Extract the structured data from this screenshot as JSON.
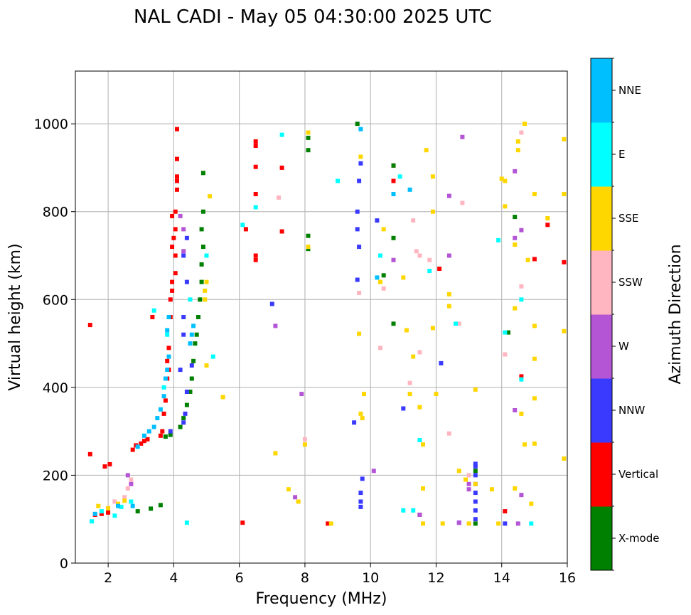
{
  "chart_data": {
    "type": "scatter",
    "title": "NAL CADI - May 05 04:30:00 2025 UTC",
    "xlabel": "Frequency (MHz)",
    "ylabel": "Virtual height (km)",
    "xlim": [
      1,
      16
    ],
    "ylim": [
      0,
      1120
    ],
    "xticks": [
      2,
      4,
      6,
      8,
      10,
      12,
      14,
      16
    ],
    "yticks": [
      0,
      200,
      400,
      600,
      800,
      1000
    ],
    "grid": true,
    "colorbar": {
      "label": "Azimuth Direction",
      "categories": [
        "X-mode",
        "Vertical",
        "NNW",
        "W",
        "SSW",
        "SSE",
        "E",
        "NNE"
      ],
      "colors": [
        "#008000",
        "#ff0000",
        "#3a3aff",
        "#b455d6",
        "#ffb6c1",
        "#ffd700",
        "#00ffff",
        "#00bfff"
      ]
    },
    "series": [
      {
        "name": "Vertical",
        "points": [
          [
            1.45,
            542
          ],
          [
            1.45,
            248
          ],
          [
            1.6,
            110
          ],
          [
            1.8,
            112
          ],
          [
            2.0,
            115
          ],
          [
            1.9,
            220
          ],
          [
            2.05,
            225
          ],
          [
            2.75,
            258
          ],
          [
            2.85,
            268
          ],
          [
            3.0,
            272
          ],
          [
            3.1,
            278
          ],
          [
            3.2,
            282
          ],
          [
            3.35,
            560
          ],
          [
            3.6,
            290
          ],
          [
            3.65,
            300
          ],
          [
            3.7,
            340
          ],
          [
            3.75,
            370
          ],
          [
            3.8,
            420
          ],
          [
            3.85,
            440
          ],
          [
            3.8,
            460
          ],
          [
            3.85,
            490
          ],
          [
            3.9,
            560
          ],
          [
            3.9,
            600
          ],
          [
            3.95,
            620
          ],
          [
            3.95,
            640
          ],
          [
            4.05,
            660
          ],
          [
            4.05,
            700
          ],
          [
            3.95,
            720
          ],
          [
            4.0,
            740
          ],
          [
            4.05,
            760
          ],
          [
            3.95,
            790
          ],
          [
            4.05,
            800
          ],
          [
            4.1,
            850
          ],
          [
            4.1,
            870
          ],
          [
            4.1,
            880
          ],
          [
            4.1,
            920
          ],
          [
            4.1,
            988
          ],
          [
            6.1,
            92
          ],
          [
            6.2,
            760
          ],
          [
            6.5,
            690
          ],
          [
            6.5,
            700
          ],
          [
            6.5,
            840
          ],
          [
            6.5,
            902
          ],
          [
            6.5,
            950
          ],
          [
            6.5,
            960
          ],
          [
            7.3,
            755
          ],
          [
            7.3,
            900
          ],
          [
            8.7,
            90
          ],
          [
            10.7,
            870
          ],
          [
            10.7,
            905
          ],
          [
            11.5,
            110
          ],
          [
            12.1,
            670
          ],
          [
            14.1,
            118
          ],
          [
            14.6,
            425
          ],
          [
            15.0,
            692
          ],
          [
            15.4,
            770
          ],
          [
            15.9,
            685
          ]
        ]
      },
      {
        "name": "X-mode",
        "points": [
          [
            2.9,
            118
          ],
          [
            3.3,
            124
          ],
          [
            3.6,
            132
          ],
          [
            3.75,
            288
          ],
          [
            3.9,
            292
          ],
          [
            4.2,
            310
          ],
          [
            4.3,
            330
          ],
          [
            4.4,
            360
          ],
          [
            4.5,
            390
          ],
          [
            4.55,
            420
          ],
          [
            4.6,
            460
          ],
          [
            4.65,
            500
          ],
          [
            4.7,
            520
          ],
          [
            4.75,
            560
          ],
          [
            4.8,
            600
          ],
          [
            4.85,
            640
          ],
          [
            4.85,
            680
          ],
          [
            4.9,
            720
          ],
          [
            4.85,
            760
          ],
          [
            4.9,
            800
          ],
          [
            4.9,
            888
          ],
          [
            8.1,
            715
          ],
          [
            8.1,
            745
          ],
          [
            8.1,
            940
          ],
          [
            8.1,
            968
          ],
          [
            9.6,
            1000
          ],
          [
            10.4,
            655
          ],
          [
            10.7,
            545
          ],
          [
            10.7,
            740
          ],
          [
            10.7,
            905
          ],
          [
            13.2,
            90
          ],
          [
            13.2,
            210
          ],
          [
            14.2,
            525
          ],
          [
            14.4,
            788
          ]
        ]
      },
      {
        "name": "NNW",
        "points": [
          [
            3.9,
            300
          ],
          [
            4.2,
            440
          ],
          [
            4.3,
            320
          ],
          [
            4.35,
            340
          ],
          [
            4.4,
            390
          ],
          [
            4.55,
            450
          ],
          [
            4.3,
            520
          ],
          [
            4.3,
            560
          ],
          [
            4.4,
            640
          ],
          [
            4.3,
            700
          ],
          [
            4.4,
            740
          ],
          [
            7.0,
            590
          ],
          [
            9.5,
            320
          ],
          [
            9.6,
            645
          ],
          [
            9.65,
            720
          ],
          [
            9.7,
            140
          ],
          [
            9.7,
            128
          ],
          [
            9.7,
            160
          ],
          [
            9.75,
            192
          ],
          [
            9.6,
            760
          ],
          [
            9.6,
            800
          ],
          [
            9.65,
            870
          ],
          [
            9.7,
            910
          ],
          [
            10.2,
            780
          ],
          [
            11.0,
            352
          ],
          [
            12.15,
            455
          ],
          [
            12.7,
            92
          ],
          [
            13.2,
            100
          ],
          [
            13.2,
            120
          ],
          [
            13.2,
            140
          ],
          [
            13.2,
            160
          ],
          [
            13.2,
            180
          ],
          [
            13.2,
            200
          ],
          [
            13.2,
            220
          ],
          [
            13.2,
            226
          ],
          [
            14.1,
            90
          ]
        ]
      },
      {
        "name": "W",
        "points": [
          [
            2.6,
            200
          ],
          [
            2.7,
            180
          ],
          [
            4.2,
            790
          ],
          [
            4.3,
            710
          ],
          [
            4.3,
            760
          ],
          [
            7.1,
            540
          ],
          [
            7.7,
            150
          ],
          [
            7.9,
            385
          ],
          [
            10.1,
            210
          ],
          [
            10.7,
            690
          ],
          [
            11.5,
            110
          ],
          [
            12.4,
            700
          ],
          [
            12.4,
            836
          ],
          [
            12.7,
            92
          ],
          [
            12.8,
            970
          ],
          [
            13.0,
            168
          ],
          [
            13.0,
            180
          ],
          [
            14.4,
            348
          ],
          [
            14.4,
            892
          ],
          [
            14.6,
            758
          ],
          [
            14.6,
            155
          ],
          [
            14.5,
            90
          ],
          [
            14.4,
            740
          ]
        ]
      },
      {
        "name": "SSW",
        "points": [
          [
            2.2,
            140
          ],
          [
            2.5,
            150
          ],
          [
            2.6,
            170
          ],
          [
            2.7,
            190
          ],
          [
            7.2,
            832
          ],
          [
            8.0,
            270
          ],
          [
            8.0,
            282
          ],
          [
            9.65,
            615
          ],
          [
            10.3,
            490
          ],
          [
            10.4,
            625
          ],
          [
            11.2,
            410
          ],
          [
            11.3,
            780
          ],
          [
            11.4,
            710
          ],
          [
            11.5,
            700
          ],
          [
            11.5,
            480
          ],
          [
            11.8,
            690
          ],
          [
            12.4,
            295
          ],
          [
            12.7,
            545
          ],
          [
            12.8,
            820
          ],
          [
            13.0,
            200
          ],
          [
            14.1,
            475
          ],
          [
            14.6,
            630
          ],
          [
            14.6,
            980
          ]
        ]
      },
      {
        "name": "SSE",
        "points": [
          [
            1.7,
            130
          ],
          [
            2.0,
            125
          ],
          [
            2.3,
            135
          ],
          [
            2.5,
            142
          ],
          [
            4.95,
            600
          ],
          [
            4.95,
            620
          ],
          [
            5.0,
            640
          ],
          [
            5.1,
            835
          ],
          [
            5.0,
            450
          ],
          [
            5.5,
            378
          ],
          [
            7.1,
            250
          ],
          [
            7.5,
            168
          ],
          [
            7.8,
            140
          ],
          [
            8.0,
            270
          ],
          [
            8.1,
            720
          ],
          [
            8.1,
            980
          ],
          [
            8.8,
            90
          ],
          [
            9.7,
            340
          ],
          [
            9.75,
            330
          ],
          [
            9.8,
            385
          ],
          [
            9.65,
            522
          ],
          [
            9.7,
            925
          ],
          [
            10.3,
            640
          ],
          [
            10.4,
            760
          ],
          [
            11.0,
            650
          ],
          [
            11.1,
            530
          ],
          [
            11.2,
            385
          ],
          [
            11.3,
            470
          ],
          [
            11.5,
            355
          ],
          [
            11.6,
            270
          ],
          [
            11.6,
            170
          ],
          [
            11.6,
            90
          ],
          [
            11.7,
            940
          ],
          [
            11.9,
            535
          ],
          [
            11.9,
            800
          ],
          [
            11.9,
            880
          ],
          [
            12.0,
            385
          ],
          [
            12.2,
            90
          ],
          [
            12.4,
            585
          ],
          [
            12.4,
            612
          ],
          [
            12.7,
            210
          ],
          [
            12.9,
            190
          ],
          [
            13.0,
            90
          ],
          [
            13.2,
            395
          ],
          [
            13.2,
            180
          ],
          [
            13.7,
            168
          ],
          [
            13.9,
            90
          ],
          [
            14.0,
            875
          ],
          [
            14.1,
            812
          ],
          [
            14.1,
            870
          ],
          [
            14.4,
            580
          ],
          [
            14.4,
            725
          ],
          [
            14.4,
            170
          ],
          [
            14.5,
            940
          ],
          [
            14.5,
            960
          ],
          [
            14.6,
            340
          ],
          [
            14.7,
            270
          ],
          [
            14.7,
            1000
          ],
          [
            14.8,
            690
          ],
          [
            14.9,
            135
          ],
          [
            15.0,
            272
          ],
          [
            15.0,
            375
          ],
          [
            15.0,
            465
          ],
          [
            15.0,
            540
          ],
          [
            15.0,
            840
          ],
          [
            15.4,
            785
          ],
          [
            15.9,
            238
          ],
          [
            15.9,
            528
          ],
          [
            15.9,
            840
          ],
          [
            15.9,
            965
          ]
        ]
      },
      {
        "name": "E",
        "points": [
          [
            1.5,
            95
          ],
          [
            1.8,
            118
          ],
          [
            2.2,
            108
          ],
          [
            2.4,
            128
          ],
          [
            2.7,
            140
          ],
          [
            3.4,
            575
          ],
          [
            3.7,
            400
          ],
          [
            3.8,
            520
          ],
          [
            4.4,
            92
          ],
          [
            4.5,
            600
          ],
          [
            5.0,
            700
          ],
          [
            5.2,
            470
          ],
          [
            6.1,
            770
          ],
          [
            6.5,
            810
          ],
          [
            7.3,
            975
          ],
          [
            9.0,
            870
          ],
          [
            10.3,
            700
          ],
          [
            10.7,
            840
          ],
          [
            10.9,
            880
          ],
          [
            11.0,
            120
          ],
          [
            11.3,
            120
          ],
          [
            11.5,
            280
          ],
          [
            11.8,
            665
          ],
          [
            12.6,
            545
          ],
          [
            13.9,
            735
          ],
          [
            14.1,
            525
          ],
          [
            14.6,
            418
          ],
          [
            14.6,
            600
          ],
          [
            14.9,
            90
          ]
        ]
      },
      {
        "name": "NNE",
        "points": [
          [
            1.6,
            112
          ],
          [
            2.3,
            130
          ],
          [
            2.75,
            130
          ],
          [
            2.9,
            265
          ],
          [
            3.1,
            290
          ],
          [
            3.25,
            300
          ],
          [
            3.4,
            310
          ],
          [
            3.5,
            330
          ],
          [
            3.6,
            350
          ],
          [
            3.7,
            380
          ],
          [
            3.75,
            420
          ],
          [
            3.8,
            440
          ],
          [
            3.85,
            470
          ],
          [
            3.8,
            530
          ],
          [
            3.85,
            560
          ],
          [
            4.5,
            500
          ],
          [
            4.55,
            520
          ],
          [
            4.6,
            540
          ],
          [
            9.7,
            988
          ],
          [
            10.2,
            650
          ],
          [
            10.7,
            840
          ],
          [
            11.2,
            850
          ]
        ]
      }
    ]
  }
}
